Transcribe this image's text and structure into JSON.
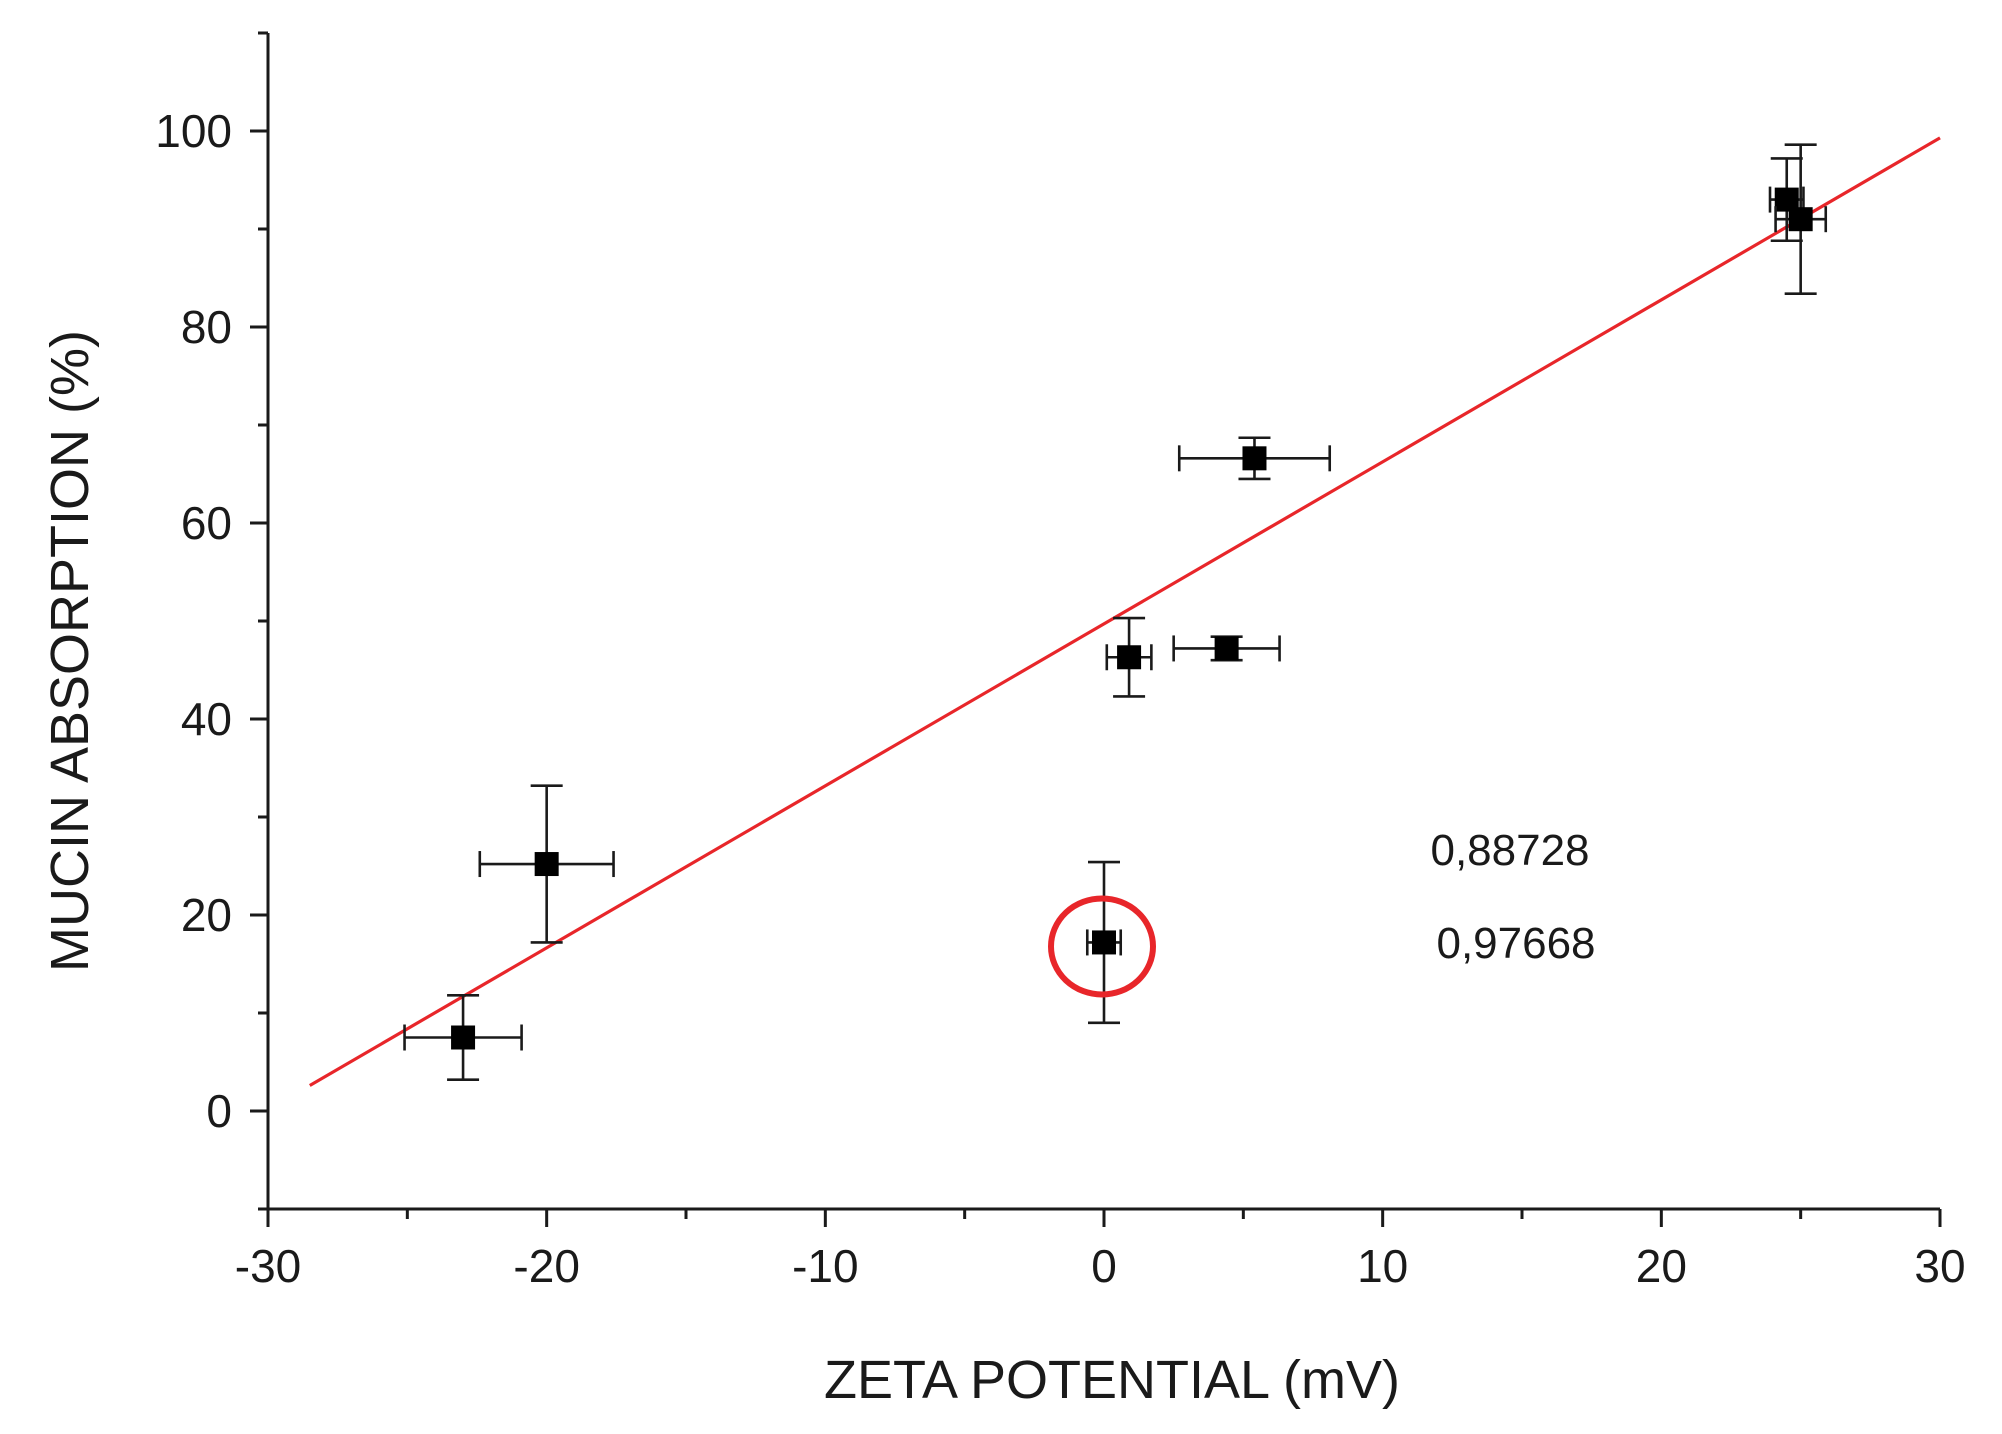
{
  "chart_data": {
    "type": "scatter",
    "title": "",
    "xlabel": "ZETA POTENTIAL (mV)",
    "ylabel": "MUCIN ABSORPTION (%)",
    "xlim": [
      -30,
      30
    ],
    "ylim": [
      -10,
      110
    ],
    "x_ticks": [
      -30,
      -20,
      -10,
      0,
      10,
      20,
      30
    ],
    "y_ticks": [
      0,
      20,
      40,
      60,
      80,
      100
    ],
    "grid": false,
    "legend": "none",
    "colors": {
      "points": "#000000",
      "fit": "#e8262a",
      "highlight": "#e8262a",
      "axes": "#1a1a1a"
    },
    "series": [
      {
        "name": "samples",
        "points": [
          {
            "x": -23.0,
            "y": 7.5,
            "xerr": 2.1,
            "yerr": 4.3
          },
          {
            "x": -20.0,
            "y": 25.2,
            "xerr": 2.4,
            "yerr": 8.0
          },
          {
            "x": 0.0,
            "y": 17.2,
            "xerr": 0.6,
            "yerr": 8.2,
            "highlighted": true
          },
          {
            "x": 0.9,
            "y": 46.3,
            "xerr": 0.8,
            "yerr": 4.0
          },
          {
            "x": 4.4,
            "y": 47.2,
            "xerr": 1.9,
            "yerr": 1.2
          },
          {
            "x": 5.4,
            "y": 66.6,
            "xerr": 2.7,
            "yerr": 2.1
          },
          {
            "x": 24.5,
            "y": 93.0,
            "xerr": 0.6,
            "yerr": 4.2
          },
          {
            "x": 25.0,
            "y": 91.0,
            "xerr": 0.9,
            "yerr": 7.6
          }
        ]
      }
    ],
    "fit_line": {
      "x": [
        -28.5,
        30.0
      ],
      "y": [
        2.6,
        99.3
      ]
    },
    "annotations": [
      "0,88728",
      "0,97668"
    ]
  }
}
